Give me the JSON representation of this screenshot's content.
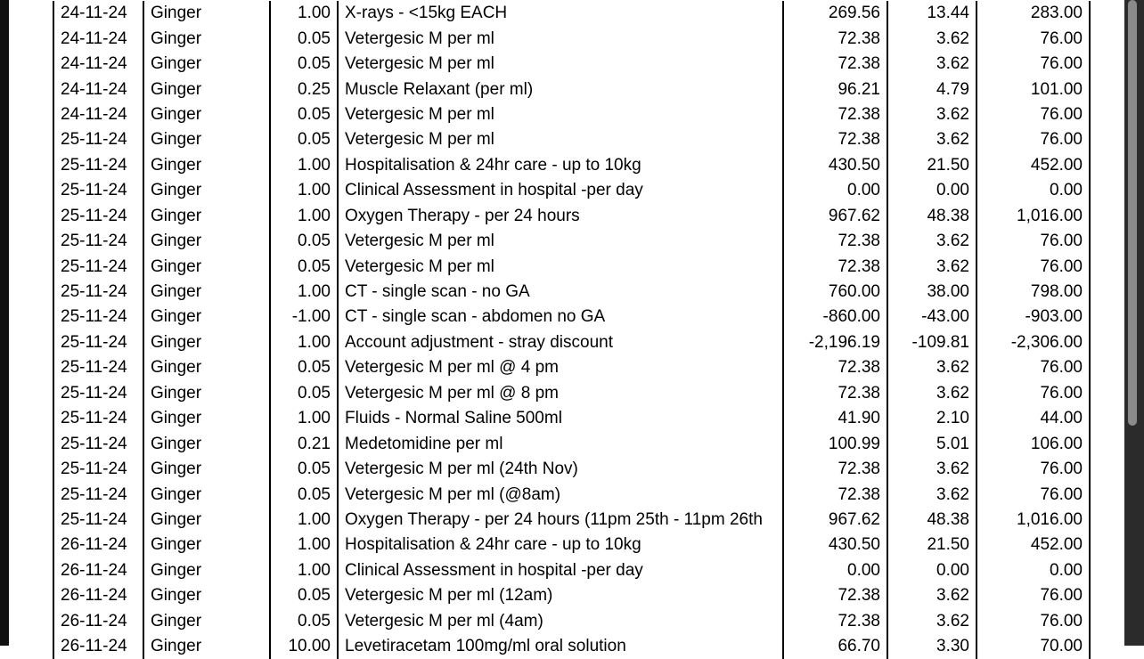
{
  "table": {
    "rows": [
      [
        "24-11-24",
        "Ginger",
        "1.00",
        "X-rays - <15kg EACH",
        "269.56",
        "13.44",
        "283.00"
      ],
      [
        "24-11-24",
        "Ginger",
        "0.05",
        "Vetergesic M per ml",
        "72.38",
        "3.62",
        "76.00"
      ],
      [
        "24-11-24",
        "Ginger",
        "0.05",
        "Vetergesic M per ml",
        "72.38",
        "3.62",
        "76.00"
      ],
      [
        "24-11-24",
        "Ginger",
        "0.25",
        "Muscle Relaxant (per ml)",
        "96.21",
        "4.79",
        "101.00"
      ],
      [
        "24-11-24",
        "Ginger",
        "0.05",
        "Vetergesic M per ml",
        "72.38",
        "3.62",
        "76.00"
      ],
      [
        "25-11-24",
        "Ginger",
        "0.05",
        "Vetergesic M per ml",
        "72.38",
        "3.62",
        "76.00"
      ],
      [
        "25-11-24",
        "Ginger",
        "1.00",
        "Hospitalisation & 24hr care - up to 10kg",
        "430.50",
        "21.50",
        "452.00"
      ],
      [
        "25-11-24",
        "Ginger",
        "1.00",
        "Clinical Assessment in hospital -per day",
        "0.00",
        "0.00",
        "0.00"
      ],
      [
        "25-11-24",
        "Ginger",
        "1.00",
        "Oxygen Therapy - per 24 hours",
        "967.62",
        "48.38",
        "1,016.00"
      ],
      [
        "25-11-24",
        "Ginger",
        "0.05",
        "Vetergesic M per ml",
        "72.38",
        "3.62",
        "76.00"
      ],
      [
        "25-11-24",
        "Ginger",
        "0.05",
        "Vetergesic M per ml",
        "72.38",
        "3.62",
        "76.00"
      ],
      [
        "25-11-24",
        "Ginger",
        "1.00",
        "CT - single scan - no GA",
        "760.00",
        "38.00",
        "798.00"
      ],
      [
        "25-11-24",
        "Ginger",
        "-1.00",
        "CT - single scan - abdomen no GA",
        "-860.00",
        "-43.00",
        "-903.00"
      ],
      [
        "25-11-24",
        "Ginger",
        "1.00",
        "Account adjustment - stray discount",
        "-2,196.19",
        "-109.81",
        "-2,306.00"
      ],
      [
        "25-11-24",
        "Ginger",
        "0.05",
        "Vetergesic M per ml @ 4 pm",
        "72.38",
        "3.62",
        "76.00"
      ],
      [
        "25-11-24",
        "Ginger",
        "0.05",
        "Vetergesic M per ml @ 8 pm",
        "72.38",
        "3.62",
        "76.00"
      ],
      [
        "25-11-24",
        "Ginger",
        "1.00",
        "Fluids - Normal Saline 500ml",
        "41.90",
        "2.10",
        "44.00"
      ],
      [
        "25-11-24",
        "Ginger",
        "0.21",
        "Medetomidine per ml",
        "100.99",
        "5.01",
        "106.00"
      ],
      [
        "25-11-24",
        "Ginger",
        "0.05",
        "Vetergesic M per ml (24th Nov)",
        "72.38",
        "3.62",
        "76.00"
      ],
      [
        "25-11-24",
        "Ginger",
        "0.05",
        "Vetergesic M per ml (@8am)",
        "72.38",
        "3.62",
        "76.00"
      ],
      [
        "25-11-24",
        "Ginger",
        "1.00",
        "Oxygen Therapy - per 24 hours (11pm 25th - 11pm 26th",
        "967.62",
        "48.38",
        "1,016.00"
      ],
      [
        "26-11-24",
        "Ginger",
        "1.00",
        "Hospitalisation & 24hr care - up to 10kg",
        "430.50",
        "21.50",
        "452.00"
      ],
      [
        "26-11-24",
        "Ginger",
        "1.00",
        "Clinical Assessment in hospital -per day",
        "0.00",
        "0.00",
        "0.00"
      ],
      [
        "26-11-24",
        "Ginger",
        "0.05",
        "Vetergesic M per ml (12am)",
        "72.38",
        "3.62",
        "76.00"
      ],
      [
        "26-11-24",
        "Ginger",
        "0.05",
        "Vetergesic M per ml (4am)",
        "72.38",
        "3.62",
        "76.00"
      ],
      [
        "26-11-24",
        "Ginger",
        "10.00",
        "Levetiracetam 100mg/ml oral solution",
        "66.70",
        "3.30",
        "70.00"
      ]
    ]
  }
}
